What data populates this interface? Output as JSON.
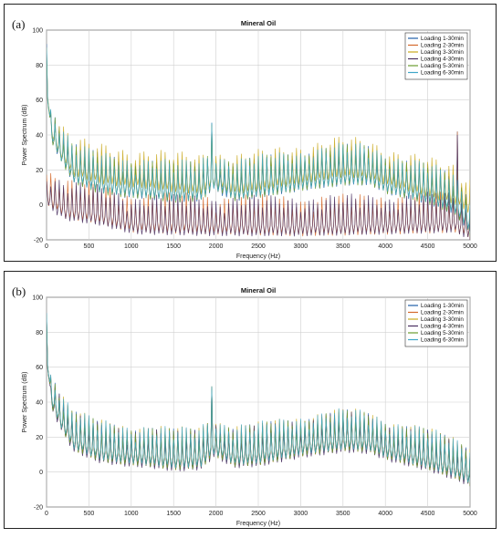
{
  "chart_data": [
    {
      "panel_label": "(a)",
      "type": "line",
      "title": "Mineral Oil",
      "xlabel": "Frequency (Hz)",
      "ylabel": "Power Spectrum (dB)",
      "xlim": [
        0,
        5000
      ],
      "ylim": [
        -20,
        100
      ],
      "xticks": [
        "0",
        "500",
        "1000",
        "1500",
        "2000",
        "2500",
        "3000",
        "3500",
        "4000",
        "4500",
        "5000"
      ],
      "yticks": [
        "-20",
        "0",
        "20",
        "40",
        "60",
        "80",
        "100"
      ],
      "grid": true,
      "legend_position": "top-right",
      "harmonic_spacing_hz": 50,
      "series": [
        {
          "name": "Loading 1-30min",
          "color": "#1f5fa8",
          "base_db": [
            [
              0,
              60
            ],
            [
              50,
              40
            ],
            [
              150,
              30
            ],
            [
              300,
              18
            ],
            [
              600,
              13
            ],
            [
              900,
              10
            ],
            [
              1200,
              9
            ],
            [
              1500,
              7
            ],
            [
              1800,
              8
            ],
            [
              1950,
              15
            ],
            [
              2000,
              12
            ],
            [
              2200,
              8
            ],
            [
              2500,
              10
            ],
            [
              3000,
              14
            ],
            [
              3500,
              17
            ],
            [
              3800,
              17
            ],
            [
              4000,
              12
            ],
            [
              4500,
              6
            ],
            [
              4800,
              0
            ],
            [
              5000,
              -12
            ]
          ],
          "peaks": [
            [
              0,
              92
            ],
            [
              1950,
              47
            ],
            [
              4870,
              42
            ]
          ]
        },
        {
          "name": "Loading 2-30min",
          "color": "#d4682a",
          "base_db": [
            [
              0,
              5
            ],
            [
              100,
              2
            ],
            [
              200,
              -2
            ],
            [
              600,
              -5
            ],
            [
              1000,
              -10
            ],
            [
              2000,
              -11
            ],
            [
              3000,
              -12
            ],
            [
              4000,
              -11
            ],
            [
              4800,
              -10
            ],
            [
              5000,
              -14
            ]
          ],
          "peaks": [
            [
              4870,
              42
            ]
          ]
        },
        {
          "name": "Loading 3-30min",
          "color": "#c9a91e",
          "base_db": [
            [
              0,
              62
            ],
            [
              50,
              42
            ],
            [
              150,
              32
            ],
            [
              300,
              22
            ],
            [
              600,
              18
            ],
            [
              900,
              16
            ],
            [
              1200,
              15
            ],
            [
              1500,
              13
            ],
            [
              1800,
              12
            ],
            [
              1950,
              16
            ],
            [
              2200,
              12
            ],
            [
              2500,
              14
            ],
            [
              3000,
              18
            ],
            [
              3500,
              22
            ],
            [
              3800,
              20
            ],
            [
              4000,
              17
            ],
            [
              4500,
              10
            ],
            [
              4800,
              6
            ],
            [
              5000,
              0
            ]
          ],
          "peaks": [
            [
              0,
              90
            ],
            [
              1950,
              45
            ]
          ]
        },
        {
          "name": "Loading 4-30min",
          "color": "#4a3060",
          "base_db": [
            [
              0,
              4
            ],
            [
              100,
              0
            ],
            [
              200,
              -3
            ],
            [
              600,
              -6
            ],
            [
              1000,
              -11
            ],
            [
              2000,
              -12
            ],
            [
              3000,
              -12
            ],
            [
              4000,
              -11
            ],
            [
              4800,
              -10
            ],
            [
              5000,
              -15
            ]
          ],
          "peaks": [
            [
              4870,
              40
            ]
          ]
        },
        {
          "name": "Loading 5-30min",
          "color": "#6a9c2e",
          "base_db": [
            [
              0,
              60
            ],
            [
              50,
              40
            ],
            [
              150,
              30
            ],
            [
              300,
              18
            ],
            [
              600,
              12
            ],
            [
              900,
              10
            ],
            [
              1200,
              9
            ],
            [
              1500,
              7
            ],
            [
              1800,
              8
            ],
            [
              1950,
              15
            ],
            [
              2200,
              8
            ],
            [
              2500,
              10
            ],
            [
              3000,
              14
            ],
            [
              3500,
              17
            ],
            [
              3800,
              17
            ],
            [
              4000,
              12
            ],
            [
              4500,
              6
            ],
            [
              4800,
              0
            ],
            [
              5000,
              -12
            ]
          ],
          "peaks": [
            [
              0,
              88
            ],
            [
              1950,
              46
            ]
          ]
        },
        {
          "name": "Loading 6-30min",
          "color": "#3fa7c8",
          "base_db": [
            [
              0,
              61
            ],
            [
              50,
              41
            ],
            [
              150,
              31
            ],
            [
              300,
              19
            ],
            [
              600,
              13
            ],
            [
              900,
              11
            ],
            [
              1200,
              10
            ],
            [
              1500,
              8
            ],
            [
              1800,
              9
            ],
            [
              1950,
              15
            ],
            [
              2200,
              9
            ],
            [
              2500,
              11
            ],
            [
              3000,
              15
            ],
            [
              3500,
              18
            ],
            [
              3800,
              18
            ],
            [
              4000,
              13
            ],
            [
              4500,
              7
            ],
            [
              4800,
              1
            ],
            [
              5000,
              -11
            ]
          ],
          "peaks": [
            [
              0,
              90
            ],
            [
              1950,
              47
            ]
          ]
        }
      ]
    },
    {
      "panel_label": "(b)",
      "type": "line",
      "title": "Mineral Oil",
      "xlabel": "Frequency (Hz)",
      "ylabel": "Power Spectrum (dB)",
      "xlim": [
        0,
        5000
      ],
      "ylim": [
        -20,
        100
      ],
      "xticks": [
        "0",
        "500",
        "1000",
        "1500",
        "2000",
        "2500",
        "3000",
        "3500",
        "4000",
        "4500",
        "5000"
      ],
      "yticks": [
        "-20",
        "0",
        "20",
        "40",
        "60",
        "80",
        "100"
      ],
      "grid": true,
      "legend_position": "top-right",
      "harmonic_spacing_hz": 50,
      "series": [
        {
          "name": "Loading 1-30min",
          "color": "#1f5fa8",
          "base_db": [
            [
              0,
              60
            ],
            [
              50,
              42
            ],
            [
              150,
              30
            ],
            [
              300,
              18
            ],
            [
              600,
              12
            ],
            [
              900,
              10
            ],
            [
              1200,
              9
            ],
            [
              1500,
              7
            ],
            [
              1800,
              8
            ],
            [
              1950,
              15
            ],
            [
              2200,
              9
            ],
            [
              2500,
              10
            ],
            [
              3000,
              15
            ],
            [
              3500,
              18
            ],
            [
              3800,
              17
            ],
            [
              4000,
              13
            ],
            [
              4500,
              7
            ],
            [
              4800,
              2
            ],
            [
              5000,
              -2
            ]
          ],
          "peaks": [
            [
              0,
              90
            ],
            [
              1950,
              49
            ]
          ]
        },
        {
          "name": "Loading 2-30min",
          "color": "#d4682a",
          "base_db": [
            [
              0,
              60
            ],
            [
              50,
              41
            ],
            [
              150,
              30
            ],
            [
              300,
              18
            ],
            [
              600,
              12
            ],
            [
              900,
              10
            ],
            [
              1200,
              9
            ],
            [
              1500,
              7
            ],
            [
              1800,
              8
            ],
            [
              1950,
              15
            ],
            [
              2200,
              9
            ],
            [
              2500,
              10
            ],
            [
              3000,
              15
            ],
            [
              3500,
              18
            ],
            [
              3800,
              17
            ],
            [
              4000,
              13
            ],
            [
              4500,
              7
            ],
            [
              4800,
              2
            ],
            [
              5000,
              -2
            ]
          ],
          "peaks": [
            [
              0,
              89
            ],
            [
              1950,
              48
            ]
          ]
        },
        {
          "name": "Loading 3-30min",
          "color": "#c9a91e",
          "base_db": [
            [
              0,
              61
            ],
            [
              50,
              42
            ],
            [
              150,
              31
            ],
            [
              300,
              19
            ],
            [
              600,
              13
            ],
            [
              900,
              11
            ],
            [
              1200,
              10
            ],
            [
              1500,
              8
            ],
            [
              1800,
              9
            ],
            [
              1950,
              16
            ],
            [
              2200,
              10
            ],
            [
              2500,
              11
            ],
            [
              3000,
              16
            ],
            [
              3500,
              19
            ],
            [
              3800,
              18
            ],
            [
              4000,
              14
            ],
            [
              4500,
              8
            ],
            [
              4800,
              3
            ],
            [
              5000,
              -1
            ]
          ],
          "peaks": [
            [
              0,
              90
            ],
            [
              1950,
              49
            ]
          ]
        },
        {
          "name": "Loading 4-30min",
          "color": "#4a3060",
          "base_db": [
            [
              0,
              59
            ],
            [
              50,
              40
            ],
            [
              150,
              29
            ],
            [
              300,
              17
            ],
            [
              600,
              11
            ],
            [
              900,
              9
            ],
            [
              1200,
              8
            ],
            [
              1500,
              6
            ],
            [
              1800,
              7
            ],
            [
              1950,
              14
            ],
            [
              2200,
              8
            ],
            [
              2500,
              9
            ],
            [
              3000,
              14
            ],
            [
              3500,
              17
            ],
            [
              3800,
              16
            ],
            [
              4000,
              12
            ],
            [
              4500,
              6
            ],
            [
              4800,
              1
            ],
            [
              5000,
              -3
            ]
          ],
          "peaks": [
            [
              0,
              88
            ],
            [
              1950,
              48
            ]
          ]
        },
        {
          "name": "Loading 5-30min",
          "color": "#6a9c2e",
          "base_db": [
            [
              0,
              60
            ],
            [
              50,
              41
            ],
            [
              150,
              30
            ],
            [
              300,
              18
            ],
            [
              600,
              12
            ],
            [
              900,
              10
            ],
            [
              1200,
              9
            ],
            [
              1500,
              7
            ],
            [
              1800,
              8
            ],
            [
              1950,
              15
            ],
            [
              2200,
              9
            ],
            [
              2500,
              10
            ],
            [
              3000,
              15
            ],
            [
              3500,
              18
            ],
            [
              3800,
              17
            ],
            [
              4000,
              13
            ],
            [
              4500,
              7
            ],
            [
              4800,
              2
            ],
            [
              5000,
              -2
            ]
          ],
          "peaks": [
            [
              0,
              89
            ],
            [
              1950,
              48
            ]
          ]
        },
        {
          "name": "Loading 6-30min",
          "color": "#3fa7c8",
          "base_db": [
            [
              0,
              61
            ],
            [
              50,
              42
            ],
            [
              150,
              31
            ],
            [
              300,
              19
            ],
            [
              600,
              13
            ],
            [
              900,
              11
            ],
            [
              1200,
              10
            ],
            [
              1500,
              8
            ],
            [
              1800,
              9
            ],
            [
              1950,
              16
            ],
            [
              2200,
              10
            ],
            [
              2500,
              11
            ],
            [
              3000,
              16
            ],
            [
              3500,
              19
            ],
            [
              3800,
              18
            ],
            [
              4000,
              14
            ],
            [
              4500,
              8
            ],
            [
              4800,
              3
            ],
            [
              5000,
              -1
            ]
          ],
          "peaks": [
            [
              0,
              91
            ],
            [
              1950,
              49
            ]
          ]
        }
      ]
    }
  ]
}
